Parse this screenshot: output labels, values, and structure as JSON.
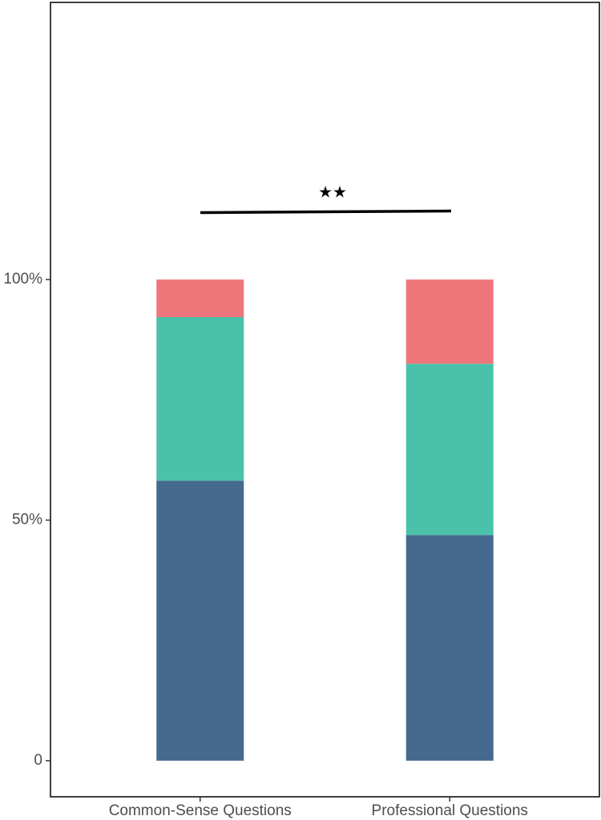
{
  "chart_data": {
    "type": "stacked_bar",
    "categories": [
      "Common-Sense Questions",
      "Professional Questions"
    ],
    "series": [
      {
        "color": "#466990",
        "values": [
          58.2,
          46.9
        ]
      },
      {
        "color": "#4ac2aa",
        "values": [
          34.0,
          35.6
        ]
      },
      {
        "color": "#ee767b",
        "values": [
          7.8,
          17.5
        ]
      }
    ],
    "ylim": [
      -7.5,
      157.6
    ],
    "yticks": [
      0,
      {
        "value": 50,
        "label": "50%"
      },
      {
        "value": 100,
        "label": "100%"
      }
    ],
    "annotation": "★★"
  }
}
